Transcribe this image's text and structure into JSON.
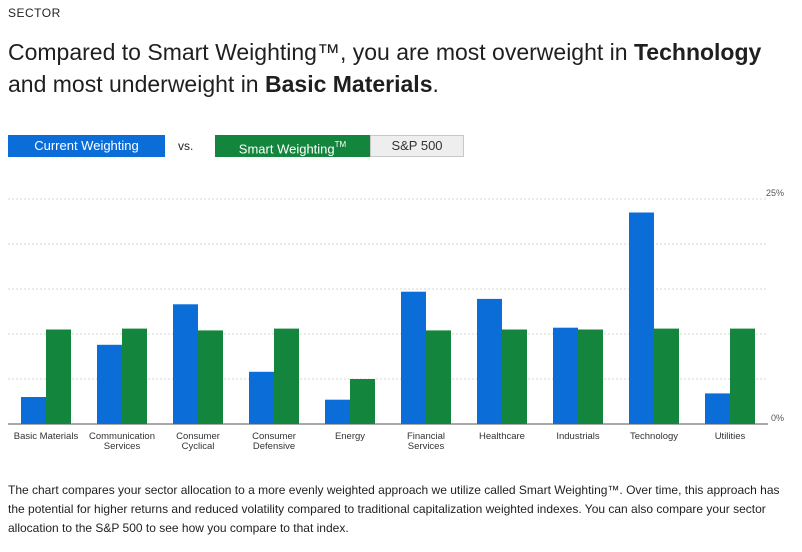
{
  "section_label": "SECTOR",
  "headline": {
    "part1": "Compared to Smart Weighting™, you are most overweight in ",
    "overweight": "Technology",
    "part2": " and most underweight in ",
    "underweight": "Basic Materials",
    "part3": "."
  },
  "toggles": {
    "current": "Current Weighting",
    "vs": "vs.",
    "smart": "Smart Weighting",
    "smart_tm": "TM",
    "sp500": "S&P 500"
  },
  "colors": {
    "current": "#0a6dd8",
    "smart": "#14853d"
  },
  "chart_data": {
    "type": "bar",
    "title": "",
    "xlabel": "",
    "ylabel": "",
    "ylim": [
      0,
      25
    ],
    "y_tick_labels": {
      "max": "25%",
      "min": "0%"
    },
    "gridlines": [
      0,
      5,
      10,
      15,
      20,
      25
    ],
    "categories": [
      [
        "Basic Materials"
      ],
      [
        "Communication",
        "Services"
      ],
      [
        "Consumer",
        "Cyclical"
      ],
      [
        "Consumer",
        "Defensive"
      ],
      [
        "Energy"
      ],
      [
        "Financial",
        "Services"
      ],
      [
        "Healthcare"
      ],
      [
        "Industrials"
      ],
      [
        "Technology"
      ],
      [
        "Utilities"
      ]
    ],
    "series": [
      {
        "name": "Current Weighting",
        "color": "#0a6dd8",
        "values": [
          3.0,
          8.8,
          13.3,
          5.8,
          2.7,
          14.7,
          13.9,
          10.7,
          23.5,
          3.4
        ]
      },
      {
        "name": "Smart Weighting",
        "color": "#14853d",
        "values": [
          10.5,
          10.6,
          10.4,
          10.6,
          5.0,
          10.4,
          10.5,
          10.5,
          10.6,
          10.6
        ]
      }
    ]
  },
  "footnote": "The chart compares your sector allocation to a more evenly weighted approach we utilize called Smart Weighting™. Over time, this approach has the potential for higher returns and reduced volatility compared to traditional capitalization weighted indexes. You can also compare your sector allocation to the S&P 500 to see how you compare to that index."
}
